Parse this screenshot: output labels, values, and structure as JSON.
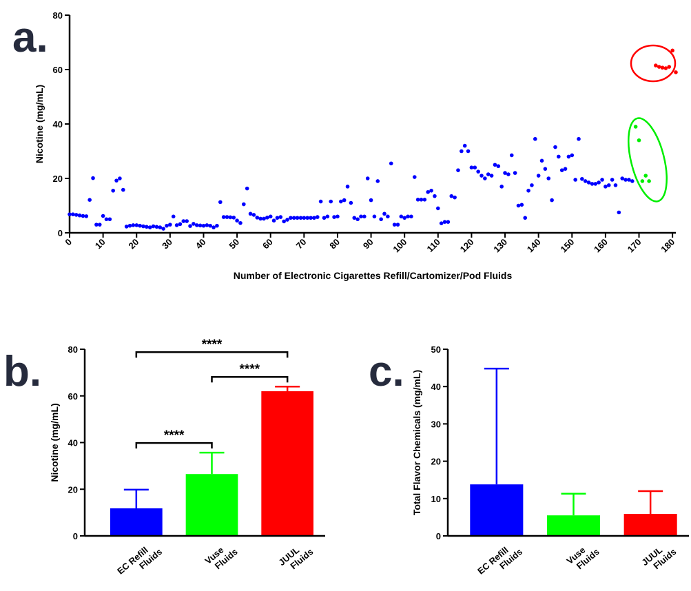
{
  "chart_data": [
    {
      "type": "scatter",
      "panel_label": "a.",
      "x_label": "Number of Electronic Cigarettes Refill/Cartomizer/Pod Fluids",
      "y_label": "Nicotine (mg/mL)",
      "xlim": [
        0,
        181
      ],
      "ylim": [
        0,
        80
      ],
      "xticks": [
        0,
        10,
        20,
        30,
        40,
        50,
        60,
        70,
        80,
        90,
        100,
        110,
        120,
        130,
        140,
        150,
        160,
        170,
        180
      ],
      "yticks": [
        0,
        20,
        40,
        60,
        80
      ],
      "series": [
        {
          "color": "#0000ff",
          "x": [
            0,
            1,
            2,
            3,
            4,
            5,
            6,
            7,
            8,
            9,
            10,
            11,
            12,
            13,
            14,
            15,
            16,
            17,
            18,
            19,
            20,
            21,
            22,
            23,
            24,
            25,
            26,
            27,
            28,
            29,
            30,
            31,
            32,
            33,
            34,
            35,
            36,
            37,
            38,
            39,
            40,
            41,
            42,
            43,
            44,
            45,
            46,
            47,
            48,
            49,
            50,
            51,
            52,
            53,
            54,
            55,
            56,
            57,
            58,
            59,
            60,
            61,
            62,
            63,
            64,
            65,
            66,
            67,
            68,
            69,
            70,
            71,
            72,
            73,
            74,
            75,
            76,
            77,
            78,
            79,
            80,
            81,
            82,
            83,
            84,
            85,
            86,
            87,
            88,
            89,
            90,
            91,
            92,
            93,
            94,
            95,
            96,
            97,
            98,
            99,
            100,
            101,
            102,
            103,
            104,
            105,
            106,
            107,
            108,
            109,
            110,
            111,
            112,
            113,
            114,
            115,
            116,
            117,
            118,
            119,
            120,
            121,
            122,
            123,
            124,
            125,
            126,
            127,
            128,
            129,
            130,
            131,
            132,
            133,
            134,
            135,
            136,
            137,
            138,
            139,
            140,
            141,
            142,
            143,
            144,
            145,
            146,
            147,
            148,
            149,
            150,
            151,
            152,
            153,
            154,
            155,
            156,
            157,
            158,
            159,
            160,
            161,
            162,
            163,
            164,
            165,
            166,
            167,
            168
          ],
          "values": [
            6.8,
            6.8,
            6.6,
            6.4,
            6.2,
            6.1,
            12.1,
            20.1,
            3,
            3,
            6.2,
            5,
            5,
            15.5,
            19.2,
            20,
            15.8,
            2.3,
            2.6,
            2.8,
            2.8,
            2.6,
            2.4,
            2.2,
            2,
            2.4,
            2.2,
            2,
            1.5,
            2.6,
            3,
            6,
            2.8,
            3.2,
            4.3,
            4.3,
            2.5,
            3.3,
            2.8,
            2.7,
            2.6,
            2.8,
            2.6,
            2,
            2.6,
            11.3,
            5.8,
            5.8,
            5.7,
            5.6,
            4.5,
            3.6,
            10.5,
            16.3,
            7,
            6.6,
            5.6,
            5.2,
            5.2,
            5.6,
            6,
            4.5,
            5.5,
            5.8,
            4.2,
            4.8,
            5.5,
            5.5,
            5.5,
            5.5,
            5.5,
            5.5,
            5.5,
            5.5,
            5.8,
            11.5,
            5.5,
            6,
            11.5,
            5.8,
            6,
            11.5,
            12,
            17,
            11,
            5.5,
            5,
            6,
            6,
            20,
            12,
            6,
            19,
            5,
            7,
            6,
            25.5,
            3,
            3,
            6,
            5.5,
            6,
            6,
            20.5,
            12.2,
            12.2,
            12.2,
            15,
            15.5,
            13.5,
            9,
            3.5,
            4,
            4,
            13.5,
            13,
            23,
            30,
            32,
            30,
            24,
            24,
            22.5,
            21,
            20,
            21.5,
            21,
            25,
            24.5,
            17,
            22,
            21.5,
            28.5,
            22,
            10,
            10.3,
            5.5,
            15.5,
            17.5,
            34.5,
            21,
            26.5,
            23.5,
            20,
            12,
            31.5,
            28,
            23,
            23.5,
            28,
            28.5,
            19.5,
            34.5,
            19.8,
            19,
            18.5,
            18,
            18,
            18.5,
            19.5,
            17,
            17.5,
            19.5,
            17.5,
            7.5,
            20,
            19.5,
            19.5,
            19
          ]
        },
        {
          "color": "#00ee00",
          "x": [
            169,
            170,
            171,
            172,
            173
          ],
          "values": [
            39,
            34,
            19,
            21,
            19
          ]
        },
        {
          "color": "#ff0000",
          "x": [
            175,
            176,
            177,
            178,
            179,
            180,
            181
          ],
          "values": [
            61.5,
            61,
            60.7,
            60.5,
            61,
            67,
            59
          ]
        }
      ]
    },
    {
      "type": "bar",
      "panel_label": "b.",
      "y_label": "Nicotine (mg/mL)",
      "categories": [
        [
          "EC Refill",
          "Fluids"
        ],
        [
          "Vuse",
          "Fluids"
        ],
        [
          "JUUL",
          "Fluids"
        ]
      ],
      "values": [
        11.8,
        26.5,
        62
      ],
      "errors": [
        8,
        9.2,
        2
      ],
      "colors": [
        "#0000ff",
        "#00ff00",
        "#ff0000"
      ],
      "ylim": [
        0,
        80
      ],
      "yticks": [
        0,
        20,
        40,
        60,
        80
      ],
      "annotations": [
        {
          "between": [
            0,
            1
          ],
          "text": "****"
        },
        {
          "between": [
            1,
            2
          ],
          "text": "****"
        },
        {
          "between": [
            0,
            2
          ],
          "text": "****"
        }
      ]
    },
    {
      "type": "bar",
      "panel_label": "c.",
      "y_label": "Total Flavor Chemicals (mg/mL)",
      "categories": [
        [
          "EC Refill",
          "Fluids"
        ],
        [
          "Vuse",
          "Fluids"
        ],
        [
          "JUUL",
          "Fluids"
        ]
      ],
      "values": [
        13.8,
        5.5,
        5.9
      ],
      "errors": [
        31,
        5.8,
        6.1
      ],
      "colors": [
        "#0000ff",
        "#00ff00",
        "#ff0000"
      ],
      "ylim": [
        0,
        50
      ],
      "yticks": [
        0,
        10,
        20,
        30,
        40,
        50
      ]
    }
  ]
}
